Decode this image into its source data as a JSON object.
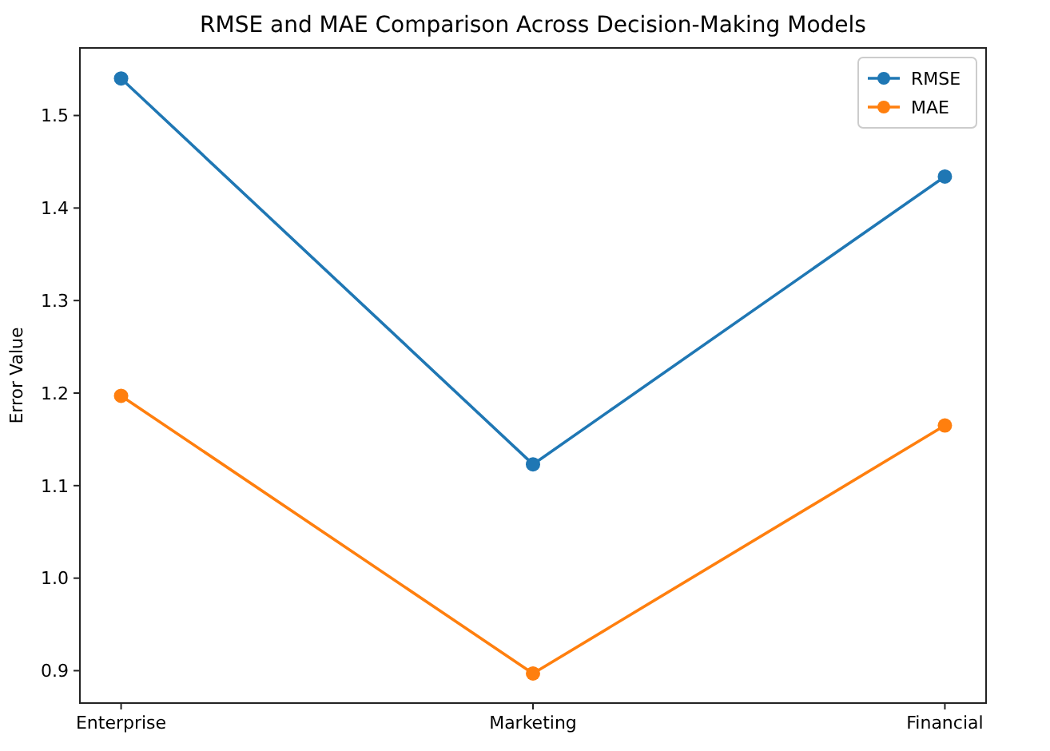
{
  "chart_data": {
    "type": "line",
    "title": "RMSE and MAE Comparison Across Decision-Making Models",
    "ylabel": "Error Value",
    "categories": [
      "Enterprise",
      "Marketing",
      "Financial"
    ],
    "series": [
      {
        "name": "RMSE",
        "color": "#1f77b4",
        "values": [
          1.54,
          1.123,
          1.434
        ]
      },
      {
        "name": "MAE",
        "color": "#ff7f0e",
        "values": [
          1.197,
          0.897,
          1.165
        ]
      }
    ],
    "ylim": [
      0.865,
      1.573
    ],
    "yticks": [
      {
        "value": 0.9,
        "label": "0.9"
      },
      {
        "value": 1.0,
        "label": "1.0"
      },
      {
        "value": 1.1,
        "label": "1.1"
      },
      {
        "value": 1.2,
        "label": "1.2"
      },
      {
        "value": 1.3,
        "label": "1.3"
      },
      {
        "value": 1.4,
        "label": "1.4"
      },
      {
        "value": 1.5,
        "label": "1.5"
      }
    ],
    "marker": "circle",
    "legend": "top right",
    "grid": false
  }
}
